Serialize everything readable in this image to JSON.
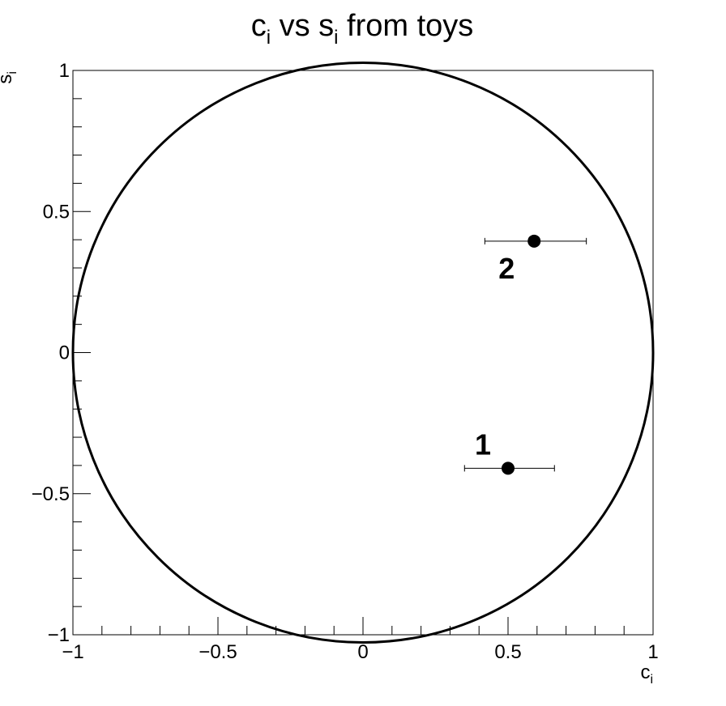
{
  "chart_data": {
    "type": "scatter",
    "title": {
      "main1": "c",
      "sub1": "i",
      "mid": " vs s",
      "sub2": "i",
      "tail": " from toys"
    },
    "xlabel": {
      "main": "c",
      "sub": "i"
    },
    "ylabel": {
      "main": "s",
      "sub": "i"
    },
    "xlim": [
      -1,
      1
    ],
    "ylim": [
      -1,
      1
    ],
    "x_ticks": [
      -1,
      -0.5,
      0,
      0.5,
      1
    ],
    "x_tick_labels": [
      "−1",
      "−0.5",
      "0",
      "0.5",
      "1"
    ],
    "y_ticks": [
      -1,
      -0.5,
      0,
      0.5,
      1
    ],
    "y_tick_labels": [
      "−1",
      "−0.5",
      "0",
      "0.5",
      "1"
    ],
    "unit_circle": {
      "radius": 1,
      "color": "#000000"
    },
    "points": [
      {
        "label": "1",
        "x": 0.5,
        "y": -0.41,
        "xerr_low": 0.35,
        "xerr_high": 0.66
      },
      {
        "label": "2",
        "x": 0.59,
        "y": 0.395,
        "xerr_low": 0.42,
        "xerr_high": 0.77
      }
    ],
    "grid": false,
    "marker_color": "#000000"
  }
}
